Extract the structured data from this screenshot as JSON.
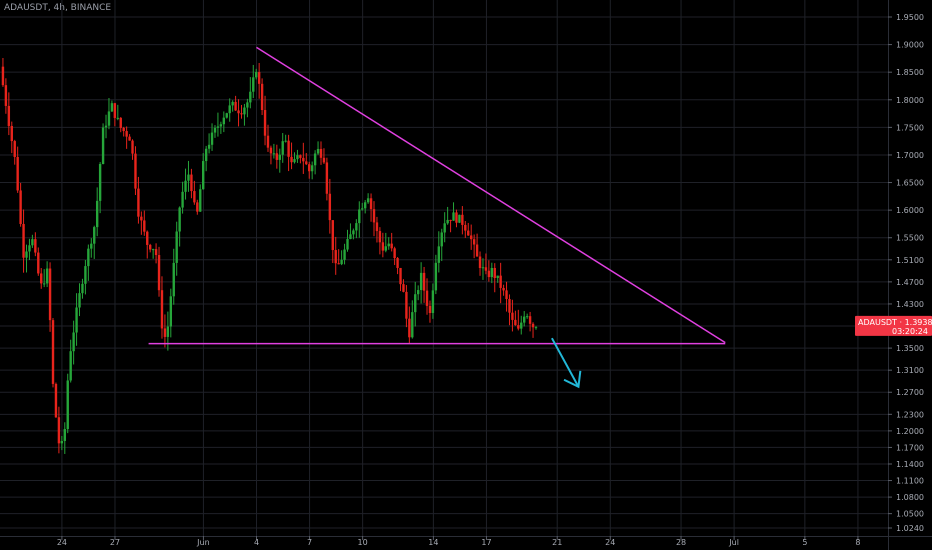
{
  "header": {
    "symbol_label": "ADAUSDT, 4h, BINANCE"
  },
  "price_tag": {
    "symbol": "ADAUSDT",
    "price": "1.3938",
    "countdown": "03:20:24",
    "color": "#f23645"
  },
  "colors": {
    "up": "#26a63a",
    "down": "#e8241c",
    "pattern_lines": "#e040e0",
    "arrow": "#22b8d8",
    "grid": "#1f2128"
  },
  "chart_data": {
    "type": "candlestick",
    "timeframe": "4h",
    "exchange": "BINANCE",
    "symbol": "ADAUSDT",
    "y_ticks": [
      "1.9500",
      "1.9000",
      "1.8500",
      "1.8000",
      "1.7500",
      "1.7000",
      "1.6500",
      "1.6000",
      "1.5500",
      "1.5100",
      "1.4700",
      "1.4300",
      "1.3900",
      "1.3500",
      "1.3100",
      "1.2700",
      "1.2300",
      "1.2000",
      "1.1700",
      "1.1400",
      "1.1100",
      "1.0800",
      "1.0500",
      "1.0240"
    ],
    "x_ticks": [
      {
        "label": "24",
        "day": 2
      },
      {
        "label": "27",
        "day": 5
      },
      {
        "label": "Jun",
        "day": 10
      },
      {
        "label": "4",
        "day": 13
      },
      {
        "label": "7",
        "day": 16
      },
      {
        "label": "10",
        "day": 19
      },
      {
        "label": "14",
        "day": 23
      },
      {
        "label": "17",
        "day": 26
      },
      {
        "label": "21",
        "day": 30
      },
      {
        "label": "24",
        "day": 33
      },
      {
        "label": "28",
        "day": 37
      },
      {
        "label": "Jul",
        "day": 40
      },
      {
        "label": "5",
        "day": 44
      },
      {
        "label": "8",
        "day": 47
      }
    ],
    "x_range_days": [
      -1.5,
      48.7
    ],
    "y_range": [
      1.024,
      1.95
    ],
    "x_axis_note": "day 0 = May 22",
    "anchors": [
      {
        "day": -1.5,
        "price": 1.86
      },
      {
        "day": -1.1,
        "price": 1.78
      },
      {
        "day": -0.6,
        "price": 1.68
      },
      {
        "day": -0.2,
        "price": 1.52
      },
      {
        "day": 0.3,
        "price": 1.55
      },
      {
        "day": 0.8,
        "price": 1.46
      },
      {
        "day": 1.2,
        "price": 1.49
      },
      {
        "day": 1.5,
        "price": 1.28
      },
      {
        "day": 1.8,
        "price": 1.18
      },
      {
        "day": 2.1,
        "price": 1.17
      },
      {
        "day": 2.4,
        "price": 1.33
      },
      {
        "day": 2.8,
        "price": 1.41
      },
      {
        "day": 3.3,
        "price": 1.5
      },
      {
        "day": 3.9,
        "price": 1.58
      },
      {
        "day": 4.3,
        "price": 1.74
      },
      {
        "day": 4.8,
        "price": 1.79
      },
      {
        "day": 5.3,
        "price": 1.75
      },
      {
        "day": 5.9,
        "price": 1.73
      },
      {
        "day": 6.3,
        "price": 1.6
      },
      {
        "day": 6.8,
        "price": 1.54
      },
      {
        "day": 7.3,
        "price": 1.53
      },
      {
        "day": 7.6,
        "price": 1.4
      },
      {
        "day": 7.9,
        "price": 1.36
      },
      {
        "day": 8.2,
        "price": 1.46
      },
      {
        "day": 8.7,
        "price": 1.62
      },
      {
        "day": 9.2,
        "price": 1.67
      },
      {
        "day": 9.6,
        "price": 1.58
      },
      {
        "day": 10.1,
        "price": 1.71
      },
      {
        "day": 10.6,
        "price": 1.74
      },
      {
        "day": 11.1,
        "price": 1.77
      },
      {
        "day": 11.6,
        "price": 1.79
      },
      {
        "day": 12.1,
        "price": 1.78
      },
      {
        "day": 12.6,
        "price": 1.8
      },
      {
        "day": 13.0,
        "price": 1.86
      },
      {
        "day": 13.3,
        "price": 1.79
      },
      {
        "day": 13.6,
        "price": 1.71
      },
      {
        "day": 14.1,
        "price": 1.69
      },
      {
        "day": 14.6,
        "price": 1.73
      },
      {
        "day": 15.0,
        "price": 1.68
      },
      {
        "day": 15.5,
        "price": 1.7
      },
      {
        "day": 16.0,
        "price": 1.67
      },
      {
        "day": 16.4,
        "price": 1.71
      },
      {
        "day": 16.8,
        "price": 1.7
      },
      {
        "day": 17.2,
        "price": 1.56
      },
      {
        "day": 17.5,
        "price": 1.49
      },
      {
        "day": 17.9,
        "price": 1.52
      },
      {
        "day": 18.4,
        "price": 1.56
      },
      {
        "day": 18.8,
        "price": 1.6
      },
      {
        "day": 19.3,
        "price": 1.63
      },
      {
        "day": 19.7,
        "price": 1.57
      },
      {
        "day": 20.1,
        "price": 1.53
      },
      {
        "day": 20.5,
        "price": 1.54
      },
      {
        "day": 20.9,
        "price": 1.5
      },
      {
        "day": 21.3,
        "price": 1.45
      },
      {
        "day": 21.6,
        "price": 1.37
      },
      {
        "day": 21.9,
        "price": 1.43
      },
      {
        "day": 22.3,
        "price": 1.48
      },
      {
        "day": 22.8,
        "price": 1.41
      },
      {
        "day": 23.2,
        "price": 1.53
      },
      {
        "day": 23.6,
        "price": 1.58
      },
      {
        "day": 24.1,
        "price": 1.59
      },
      {
        "day": 24.6,
        "price": 1.58
      },
      {
        "day": 25.0,
        "price": 1.56
      },
      {
        "day": 25.5,
        "price": 1.51
      },
      {
        "day": 26.0,
        "price": 1.48
      },
      {
        "day": 26.3,
        "price": 1.49
      },
      {
        "day": 26.7,
        "price": 1.47
      },
      {
        "day": 27.1,
        "price": 1.44
      },
      {
        "day": 27.4,
        "price": 1.4
      },
      {
        "day": 27.8,
        "price": 1.38
      },
      {
        "day": 28.2,
        "price": 1.42
      },
      {
        "day": 28.6,
        "price": 1.39
      },
      {
        "day": 28.8,
        "price": 1.3938
      }
    ],
    "annotations": [
      {
        "type": "line",
        "name": "descending-resistance",
        "from": {
          "day": 13.0,
          "price": 1.895
        },
        "to": {
          "day": 39.5,
          "price": 1.36
        }
      },
      {
        "type": "line",
        "name": "horizontal-support",
        "from": {
          "day": 6.9,
          "price": 1.358
        },
        "to": {
          "day": 39.5,
          "price": 1.358
        }
      },
      {
        "type": "arrow",
        "name": "breakdown-arrow",
        "from": {
          "day": 29.7,
          "price": 1.368
        },
        "to": {
          "day": 31.2,
          "price": 1.28
        }
      }
    ]
  }
}
